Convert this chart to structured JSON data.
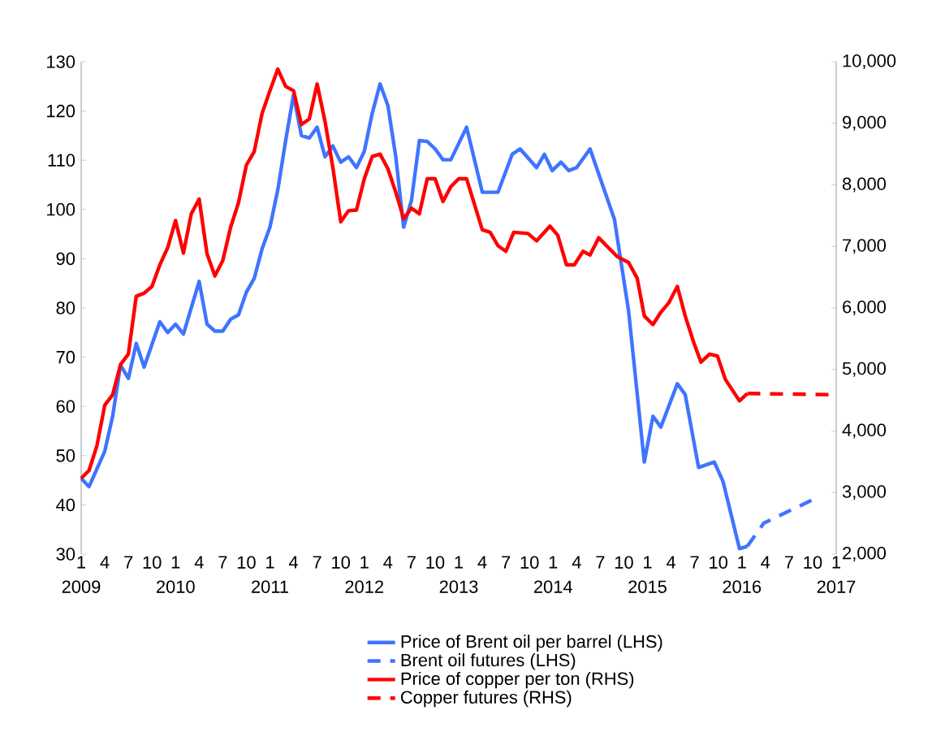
{
  "chart_data": {
    "type": "line",
    "xlim": [
      "2009-01",
      "2017-01"
    ],
    "ylim": [
      30,
      130
    ],
    "y2lim": [
      2000,
      10000
    ],
    "xticks": [
      {
        "value": "2009-01",
        "label": "1"
      },
      {
        "value": "2009-04",
        "label": "4"
      },
      {
        "value": "2009-07",
        "label": "7"
      },
      {
        "value": "2009-10",
        "label": "10"
      },
      {
        "value": "2010-01",
        "label": "1"
      },
      {
        "value": "2010-04",
        "label": "4"
      },
      {
        "value": "2010-07",
        "label": "7"
      },
      {
        "value": "2010-10",
        "label": "10"
      },
      {
        "value": "2011-01",
        "label": "1"
      },
      {
        "value": "2011-04",
        "label": "4"
      },
      {
        "value": "2011-07",
        "label": "7"
      },
      {
        "value": "2011-10",
        "label": "10"
      },
      {
        "value": "2012-01",
        "label": "1"
      },
      {
        "value": "2012-04",
        "label": "4"
      },
      {
        "value": "2012-07",
        "label": "7"
      },
      {
        "value": "2012-10",
        "label": "10"
      },
      {
        "value": "2013-01",
        "label": "1"
      },
      {
        "value": "2013-04",
        "label": "4"
      },
      {
        "value": "2013-07",
        "label": "7"
      },
      {
        "value": "2013-10",
        "label": "10"
      },
      {
        "value": "2014-01",
        "label": "1"
      },
      {
        "value": "2014-04",
        "label": "4"
      },
      {
        "value": "2014-07",
        "label": "7"
      },
      {
        "value": "2014-10",
        "label": "10"
      },
      {
        "value": "2015-01",
        "label": "1"
      },
      {
        "value": "2015-04",
        "label": "4"
      },
      {
        "value": "2015-07",
        "label": "7"
      },
      {
        "value": "2015-10",
        "label": "10"
      },
      {
        "value": "2016-01",
        "label": "1"
      },
      {
        "value": "2016-04",
        "label": "4"
      },
      {
        "value": "2016-07",
        "label": "7"
      },
      {
        "value": "2016-10",
        "label": "10"
      },
      {
        "value": "2017-01",
        "label": "1"
      }
    ],
    "x2lim": [
      "2009-01",
      "2017-01"
    ],
    "x2ticks": [
      {
        "value": "2009-01",
        "label": "2009"
      },
      {
        "value": "2010-01",
        "label": "2010"
      },
      {
        "value": "2011-01",
        "label": "2011"
      },
      {
        "value": "2012-01",
        "label": "2012"
      },
      {
        "value": "2013-01",
        "label": "2013"
      },
      {
        "value": "2014-01",
        "label": "2014"
      },
      {
        "value": "2015-01",
        "label": "2015"
      },
      {
        "value": "2016-01",
        "label": "2016"
      },
      {
        "value": "2017-01",
        "label": "2017"
      }
    ],
    "yticks": [
      30,
      40,
      50,
      60,
      70,
      80,
      90,
      100,
      110,
      120,
      130
    ],
    "y2ticks": [
      {
        "value": 2000,
        "label": "2,000"
      },
      {
        "value": 3000,
        "label": "3,000"
      },
      {
        "value": 4000,
        "label": "4,000"
      },
      {
        "value": 5000,
        "label": "5,000"
      },
      {
        "value": 6000,
        "label": "6,000"
      },
      {
        "value": 7000,
        "label": "7,000"
      },
      {
        "value": 8000,
        "label": "8,000"
      },
      {
        "value": 9000,
        "label": "9,000"
      },
      {
        "value": 10000,
        "label": "10,000"
      }
    ],
    "legend": "bottom",
    "grid": false,
    "marker": "none",
    "series": [
      {
        "name": "Price of Brent oil per barrel (LHS)",
        "color": "#3f74ff",
        "line_style": "solid",
        "x": [
          "2009-01",
          "2009-02",
          "2009-04",
          "2009-05",
          "2009-06",
          "2009-07",
          "2009-08",
          "2009-09",
          "2009-11",
          "2009-12",
          "2010-01",
          "2010-02",
          "2010-04",
          "2010-05",
          "2010-06",
          "2010-07",
          "2010-08",
          "2010-09",
          "2010-10",
          "2010-11",
          "2010-12",
          "2011-01",
          "2011-02",
          "2011-03",
          "2011-04",
          "2011-05",
          "2011-06",
          "2011-07",
          "2011-08",
          "2011-09",
          "2011-10",
          "2011-11",
          "2011-12",
          "2012-01",
          "2012-02",
          "2012-03",
          "2012-04",
          "2012-05",
          "2012-06",
          "2012-07",
          "2012-08",
          "2012-09",
          "2012-10",
          "2012-11",
          "2012-12",
          "2013-01",
          "2013-02",
          "2013-04",
          "2013-06",
          "2013-07-25",
          "2013-08-25",
          "2013-10-28",
          "2013-11-28",
          "2013-12-28",
          "2014-02",
          "2014-03",
          "2014-04",
          "2014-05-22",
          "2014-08-25",
          "2014-10-19",
          "2014-12-19",
          "2015-01-22",
          "2015-02-22",
          "2015-04-25",
          "2015-05-25",
          "2015-07-16",
          "2015-09-16",
          "2015-10-19",
          "2015-12-22",
          "2016-01-22"
        ],
        "values": [
          45.4,
          43.7,
          50.9,
          58,
          68.4,
          65.7,
          72.8,
          68,
          77.2,
          75,
          76.7,
          74.7,
          85.4,
          76.7,
          75.3,
          75.3,
          77.7,
          78.6,
          83.2,
          86,
          92,
          96.4,
          104,
          114,
          123.3,
          115,
          114.5,
          116.7,
          110.7,
          112.9,
          109.6,
          110.7,
          108.5,
          111.8,
          119.5,
          125.5,
          121.1,
          110.7,
          96.4,
          101.9,
          114,
          113.8,
          112.3,
          110.1,
          110.1,
          113.4,
          116.7,
          103.5,
          103.5,
          111.2,
          112.3,
          108.5,
          111.2,
          107.9,
          109.6,
          107.9,
          108.5,
          112.3,
          98,
          79.4,
          48.7,
          58,
          55.8,
          64.6,
          62.4,
          47.6,
          48.7,
          44.8,
          31.1,
          31.6
        ]
      },
      {
        "name": "Brent oil futures (LHS)",
        "color": "#3f74ff",
        "line_style": "dashed",
        "x": [
          "2016-01-22",
          "2016-03-25",
          "2016-10-19"
        ],
        "values": [
          31.6,
          36.3,
          41.5
        ]
      },
      {
        "name": "Price of copper per ton (RHS)",
        "color": "#ff0000",
        "line_style": "solid",
        "axis": "y2",
        "x": [
          "2009-01",
          "2009-02",
          "2009-03",
          "2009-04",
          "2009-05",
          "2009-06",
          "2009-07",
          "2009-08",
          "2009-09",
          "2009-10",
          "2009-11",
          "2009-12",
          "2010-01",
          "2010-02",
          "2010-03",
          "2010-04",
          "2010-05",
          "2010-06",
          "2010-07",
          "2010-08",
          "2010-09",
          "2010-10",
          "2010-11",
          "2010-12",
          "2011-01",
          "2011-02",
          "2011-03",
          "2011-04",
          "2011-05",
          "2011-06",
          "2011-07",
          "2011-08",
          "2011-09",
          "2011-10",
          "2011-11",
          "2011-12",
          "2012-01",
          "2012-02",
          "2012-03",
          "2012-04",
          "2012-05",
          "2012-06",
          "2012-07",
          "2012-08",
          "2012-09",
          "2012-10",
          "2012-11",
          "2012-12",
          "2013-01",
          "2013-02",
          "2013-04",
          "2013-05",
          "2013-06",
          "2013-07",
          "2013-08",
          "2013-09-25",
          "2013-10-28",
          "2013-12-19",
          "2014-01-19",
          "2014-02-22",
          "2014-03-22",
          "2014-04-25",
          "2014-05-22",
          "2014-06-25",
          "2014-07-25",
          "2014-09-07",
          "2014-10-19",
          "2014-11-22",
          "2014-12-19",
          "2015-01-22",
          "2015-02-22",
          "2015-03-22",
          "2015-04-25",
          "2015-05-25",
          "2015-06-25",
          "2015-07-25",
          "2015-08-28",
          "2015-09-28",
          "2015-10-28",
          "2015-12-22",
          "2016-01-22"
        ],
        "values": [
          3230,
          3360,
          3760,
          4420,
          4590,
          5080,
          5250,
          6190,
          6240,
          6350,
          6700,
          6980,
          7420,
          6890,
          7530,
          7770,
          6880,
          6520,
          6770,
          7310,
          7710,
          8320,
          8540,
          9160,
          9530,
          9880,
          9600,
          9530,
          8980,
          9070,
          9640,
          9030,
          8280,
          7400,
          7580,
          7590,
          8100,
          8460,
          8500,
          8260,
          7880,
          7450,
          7620,
          7530,
          8100,
          8100,
          7730,
          7970,
          8100,
          8100,
          7270,
          7230,
          7010,
          6920,
          7230,
          7210,
          7090,
          7330,
          7180,
          6700,
          6700,
          6920,
          6860,
          7140,
          7010,
          6830,
          6740,
          6480,
          5870,
          5730,
          5930,
          6080,
          6350,
          5870,
          5470,
          5120,
          5250,
          5220,
          4840,
          4490,
          4610
        ]
      },
      {
        "name": "Copper futures (RHS)",
        "color": "#ff0000",
        "line_style": "dashed",
        "axis": "y2",
        "x": [
          "2016-01-22",
          "2017-01"
        ],
        "values": [
          4610,
          4590
        ]
      }
    ]
  }
}
